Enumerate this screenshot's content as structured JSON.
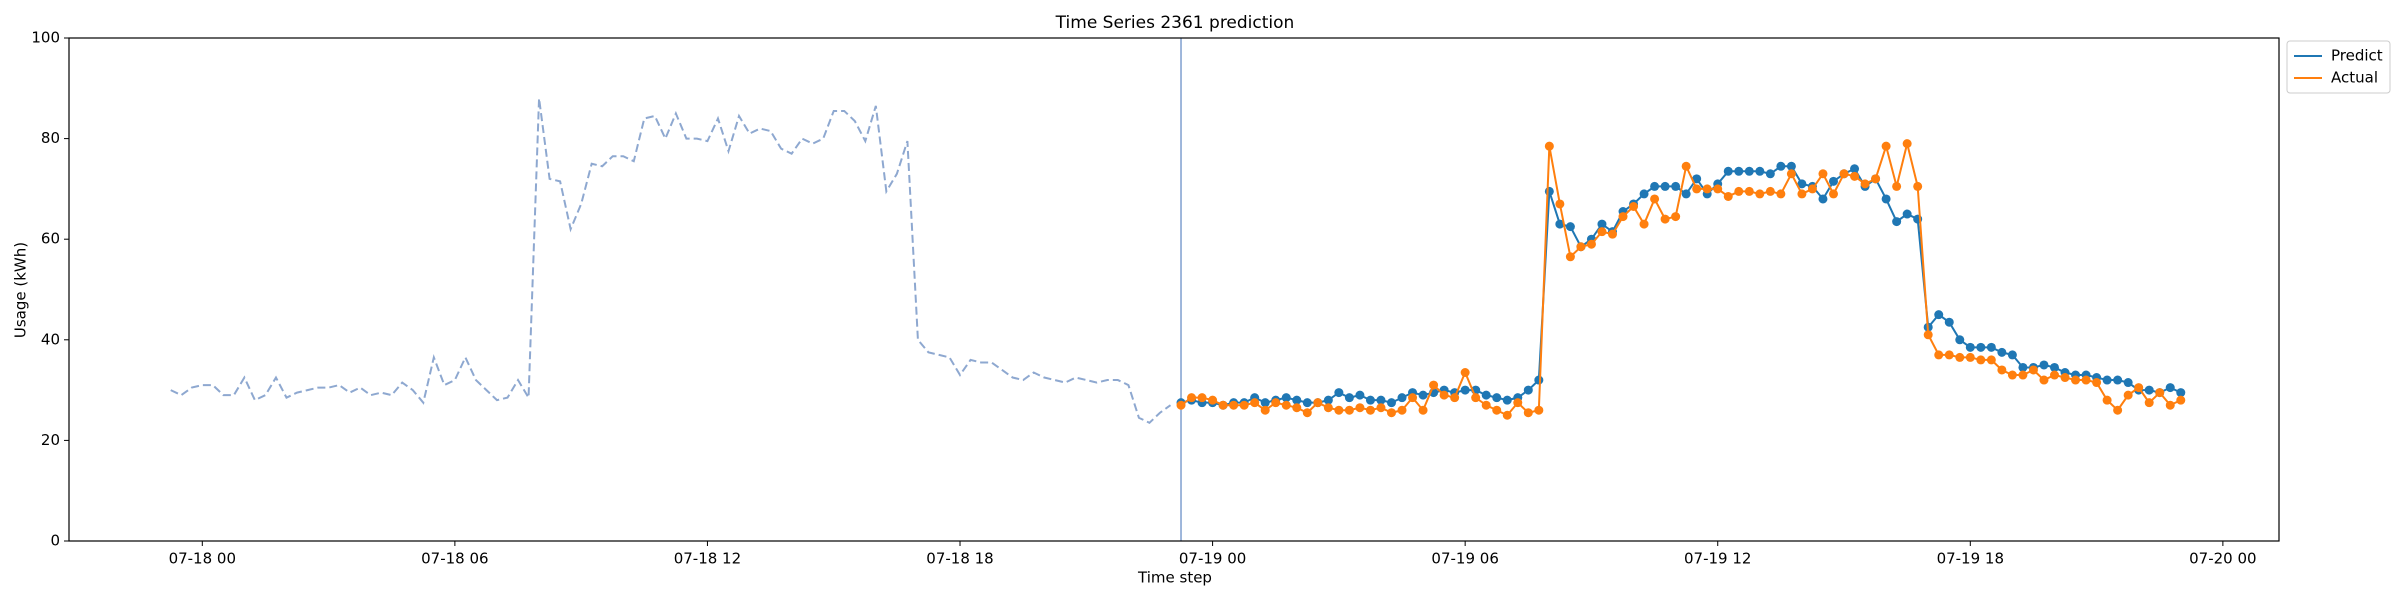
{
  "chart_data": {
    "type": "line",
    "title": "Time Series 2361 prediction",
    "xlabel": "Time step",
    "ylabel": "Usage (kWh)",
    "x": [
      "07-17 23:15",
      "07-17 23:30",
      "07-17 23:45",
      "07-18 00:00",
      "07-18 00:15",
      "07-18 00:30",
      "07-18 00:45",
      "07-18 01:00",
      "07-18 01:15",
      "07-18 01:30",
      "07-18 01:45",
      "07-18 02:00",
      "07-18 02:15",
      "07-18 02:30",
      "07-18 02:45",
      "07-18 03:00",
      "07-18 03:15",
      "07-18 03:30",
      "07-18 03:45",
      "07-18 04:00",
      "07-18 04:15",
      "07-18 04:30",
      "07-18 04:45",
      "07-18 05:00",
      "07-18 05:15",
      "07-18 05:30",
      "07-18 05:45",
      "07-18 06:00",
      "07-18 06:15",
      "07-18 06:30",
      "07-18 06:45",
      "07-18 07:00",
      "07-18 07:15",
      "07-18 07:30",
      "07-18 07:45",
      "07-18 08:00",
      "07-18 08:15",
      "07-18 08:30",
      "07-18 08:45",
      "07-18 09:00",
      "07-18 09:15",
      "07-18 09:30",
      "07-18 09:45",
      "07-18 10:00",
      "07-18 10:15",
      "07-18 10:30",
      "07-18 10:45",
      "07-18 11:00",
      "07-18 11:15",
      "07-18 11:30",
      "07-18 11:45",
      "07-18 12:00",
      "07-18 12:15",
      "07-18 12:30",
      "07-18 12:45",
      "07-18 13:00",
      "07-18 13:15",
      "07-18 13:30",
      "07-18 13:45",
      "07-18 14:00",
      "07-18 14:15",
      "07-18 14:30",
      "07-18 14:45",
      "07-18 15:00",
      "07-18 15:15",
      "07-18 15:30",
      "07-18 15:45",
      "07-18 16:00",
      "07-18 16:15",
      "07-18 16:30",
      "07-18 16:45",
      "07-18 17:00",
      "07-18 17:15",
      "07-18 17:30",
      "07-18 17:45",
      "07-18 18:00",
      "07-18 18:15",
      "07-18 18:30",
      "07-18 18:45",
      "07-18 19:00",
      "07-18 19:15",
      "07-18 19:30",
      "07-18 19:45",
      "07-18 20:00",
      "07-18 20:15",
      "07-18 20:30",
      "07-18 20:45",
      "07-18 21:00",
      "07-18 21:15",
      "07-18 21:30",
      "07-18 21:45",
      "07-18 22:00",
      "07-18 22:15",
      "07-18 22:30",
      "07-18 22:45",
      "07-18 23:00",
      "07-18 23:15",
      "07-18 23:30",
      "07-18 23:45",
      "07-19 00:00",
      "07-19 00:15",
      "07-19 00:30",
      "07-19 00:45",
      "07-19 01:00",
      "07-19 01:15",
      "07-19 01:30",
      "07-19 01:45",
      "07-19 02:00",
      "07-19 02:15",
      "07-19 02:30",
      "07-19 02:45",
      "07-19 03:00",
      "07-19 03:15",
      "07-19 03:30",
      "07-19 03:45",
      "07-19 04:00",
      "07-19 04:15",
      "07-19 04:30",
      "07-19 04:45",
      "07-19 05:00",
      "07-19 05:15",
      "07-19 05:30",
      "07-19 05:45",
      "07-19 06:00",
      "07-19 06:15",
      "07-19 06:30",
      "07-19 06:45",
      "07-19 07:00",
      "07-19 07:15",
      "07-19 07:30",
      "07-19 07:45",
      "07-19 08:00",
      "07-19 08:15",
      "07-19 08:30",
      "07-19 08:45",
      "07-19 09:00",
      "07-19 09:15",
      "07-19 09:30",
      "07-19 09:45",
      "07-19 10:00",
      "07-19 10:15",
      "07-19 10:30",
      "07-19 10:45",
      "07-19 11:00",
      "07-19 11:15",
      "07-19 11:30",
      "07-19 11:45",
      "07-19 12:00",
      "07-19 12:15",
      "07-19 12:30",
      "07-19 12:45",
      "07-19 13:00",
      "07-19 13:15",
      "07-19 13:30",
      "07-19 13:45",
      "07-19 14:00",
      "07-19 14:15",
      "07-19 14:30",
      "07-19 14:45",
      "07-19 15:00",
      "07-19 15:15",
      "07-19 15:30",
      "07-19 15:45",
      "07-19 16:00",
      "07-19 16:15",
      "07-19 16:30",
      "07-19 16:45",
      "07-19 17:00",
      "07-19 17:15",
      "07-19 17:30",
      "07-19 17:45",
      "07-19 18:00",
      "07-19 18:15",
      "07-19 18:30",
      "07-19 18:45",
      "07-19 19:00",
      "07-19 19:15",
      "07-19 19:30",
      "07-19 19:45",
      "07-19 20:00",
      "07-19 20:15",
      "07-19 20:30",
      "07-19 20:45",
      "07-19 21:00",
      "07-19 21:15",
      "07-19 21:30",
      "07-19 21:45",
      "07-19 22:00",
      "07-19 22:15",
      "07-19 22:30",
      "07-19 22:45",
      "07-19 23:00"
    ],
    "series": [
      {
        "color": "#8ea8d0",
        "linestyle": "dashed",
        "marker": false,
        "values": [
          30,
          29,
          30.5,
          31,
          31,
          29,
          29,
          32.5,
          28,
          29,
          32.5,
          28.5,
          29.5,
          30,
          30.5,
          30.5,
          31,
          29.5,
          30.5,
          29,
          29.5,
          29,
          31.5,
          30,
          27.5,
          36.5,
          31,
          32,
          36.5,
          32,
          30,
          28,
          28.5,
          32,
          28.5,
          88,
          72,
          71.5,
          62,
          67,
          75,
          74.5,
          76.5,
          76.5,
          75.5,
          84,
          84.5,
          80,
          85,
          80,
          80,
          79.5,
          84,
          77.5,
          84.5,
          81,
          82,
          81.5,
          78,
          77,
          80,
          79,
          80,
          85.5,
          85.5,
          83.5,
          79.5,
          86.5,
          69.5,
          73,
          79.5,
          40,
          37.5,
          37,
          36.5,
          33,
          36,
          35.5,
          35.5,
          34,
          32.5,
          32,
          33.5,
          32.5,
          32,
          31.5,
          32.5,
          32,
          31.5,
          32,
          32,
          31,
          24.5,
          23.5,
          25.5,
          27,
          null,
          null,
          null,
          null,
          null,
          null,
          null,
          null,
          null,
          null,
          null,
          null,
          null,
          null,
          null,
          null,
          null,
          null,
          null,
          null,
          null,
          null,
          null,
          null,
          null,
          null,
          null,
          null,
          null,
          null,
          null,
          null,
          null,
          null,
          null,
          null,
          null,
          null,
          null,
          null,
          null,
          null,
          null,
          null,
          null,
          null,
          null,
          null,
          null,
          null,
          null,
          null,
          null,
          null,
          null,
          null,
          null,
          null,
          null,
          null,
          null,
          null,
          null,
          null,
          null,
          null,
          null,
          null,
          null,
          null,
          null,
          null,
          null,
          null,
          null,
          null,
          null,
          null,
          null,
          null,
          null,
          null,
          null,
          null,
          null,
          null,
          null,
          null,
          null,
          null,
          null,
          null,
          null,
          null,
          null,
          null
        ]
      },
      {
        "name": "Predict",
        "color": "#1f77b4",
        "linestyle": "solid",
        "marker": true,
        "values": [
          null,
          null,
          null,
          null,
          null,
          null,
          null,
          null,
          null,
          null,
          null,
          null,
          null,
          null,
          null,
          null,
          null,
          null,
          null,
          null,
          null,
          null,
          null,
          null,
          null,
          null,
          null,
          null,
          null,
          null,
          null,
          null,
          null,
          null,
          null,
          null,
          null,
          null,
          null,
          null,
          null,
          null,
          null,
          null,
          null,
          null,
          null,
          null,
          null,
          null,
          null,
          null,
          null,
          null,
          null,
          null,
          null,
          null,
          null,
          null,
          null,
          null,
          null,
          null,
          null,
          null,
          null,
          null,
          null,
          null,
          null,
          null,
          null,
          null,
          null,
          null,
          null,
          null,
          null,
          null,
          null,
          null,
          null,
          null,
          null,
          null,
          null,
          null,
          null,
          null,
          null,
          null,
          null,
          null,
          null,
          null,
          27.5,
          28,
          27.5,
          27.5,
          27,
          27.5,
          27.5,
          28.5,
          27.5,
          28,
          28.5,
          28,
          27.5,
          27.5,
          28,
          29.5,
          28.5,
          29,
          28,
          28,
          27.5,
          28.5,
          29.5,
          29,
          29.5,
          30,
          29.5,
          30,
          30,
          29,
          28.5,
          28,
          28.5,
          30,
          32,
          69.5,
          63,
          62.5,
          58.5,
          60,
          63,
          61.5,
          65.5,
          67,
          69,
          70.5,
          70.5,
          70.5,
          69,
          72,
          69,
          71,
          73.5,
          73.5,
          73.5,
          73.5,
          73,
          74.5,
          74.5,
          71,
          70.5,
          68,
          71.5,
          73,
          74,
          70.5,
          72,
          68,
          63.5,
          65,
          64,
          42.5,
          45,
          43.5,
          40,
          38.5,
          38.5,
          38.5,
          37.5,
          37,
          34.5,
          34.5,
          35,
          34.5,
          33.5,
          33,
          33,
          32.5,
          32,
          32,
          31.5,
          30,
          30,
          29.5,
          30.5,
          29.5
        ]
      },
      {
        "name": "Actual",
        "color": "#ff7f0e",
        "linestyle": "solid",
        "marker": true,
        "values": [
          null,
          null,
          null,
          null,
          null,
          null,
          null,
          null,
          null,
          null,
          null,
          null,
          null,
          null,
          null,
          null,
          null,
          null,
          null,
          null,
          null,
          null,
          null,
          null,
          null,
          null,
          null,
          null,
          null,
          null,
          null,
          null,
          null,
          null,
          null,
          null,
          null,
          null,
          null,
          null,
          null,
          null,
          null,
          null,
          null,
          null,
          null,
          null,
          null,
          null,
          null,
          null,
          null,
          null,
          null,
          null,
          null,
          null,
          null,
          null,
          null,
          null,
          null,
          null,
          null,
          null,
          null,
          null,
          null,
          null,
          null,
          null,
          null,
          null,
          null,
          null,
          null,
          null,
          null,
          null,
          null,
          null,
          null,
          null,
          null,
          null,
          null,
          null,
          null,
          null,
          null,
          null,
          null,
          null,
          null,
          null,
          27,
          28.5,
          28.5,
          28,
          27,
          27,
          27,
          27.5,
          26,
          27.5,
          27,
          26.5,
          25.5,
          27.5,
          26.5,
          26,
          26,
          26.5,
          26,
          26.5,
          25.5,
          26,
          28.5,
          26,
          31,
          29,
          28.5,
          33.5,
          28.5,
          27,
          26,
          25,
          27.5,
          25.5,
          26,
          78.5,
          67,
          56.5,
          58.5,
          59,
          61.5,
          61,
          64.5,
          66.5,
          63,
          68,
          64,
          64.5,
          74.5,
          70,
          70,
          70,
          68.5,
          69.5,
          69.5,
          69,
          69.5,
          69,
          73,
          69,
          70,
          73,
          69,
          73,
          72.5,
          71,
          72,
          78.5,
          70.5,
          79,
          70.5,
          41,
          37,
          37,
          36.5,
          36.5,
          36,
          36,
          34,
          33,
          33,
          34,
          32,
          33,
          32.5,
          32,
          32,
          31.5,
          28,
          26,
          29,
          30.5,
          27.5,
          29.5,
          27,
          28
        ]
      }
    ],
    "xlim": [
      "07-17 20:50",
      "07-20 01:20"
    ],
    "xticks": [
      {
        "value": "07-18 00:00",
        "label": "07-18 00"
      },
      {
        "value": "07-18 06:00",
        "label": "07-18 06"
      },
      {
        "value": "07-18 12:00",
        "label": "07-18 12"
      },
      {
        "value": "07-18 18:00",
        "label": "07-18 18"
      },
      {
        "value": "07-19 00:00",
        "label": "07-19 00"
      },
      {
        "value": "07-19 06:00",
        "label": "07-19 06"
      },
      {
        "value": "07-19 12:00",
        "label": "07-19 12"
      },
      {
        "value": "07-19 18:00",
        "label": "07-19 18"
      },
      {
        "value": "07-20 00:00",
        "label": "07-20 00"
      }
    ],
    "ylim": [
      0,
      100
    ],
    "yticks": [
      0,
      20,
      40,
      60,
      80,
      100
    ],
    "grid": false,
    "legend": "outside upper right",
    "split_line_color": "#7f9fcf"
  }
}
